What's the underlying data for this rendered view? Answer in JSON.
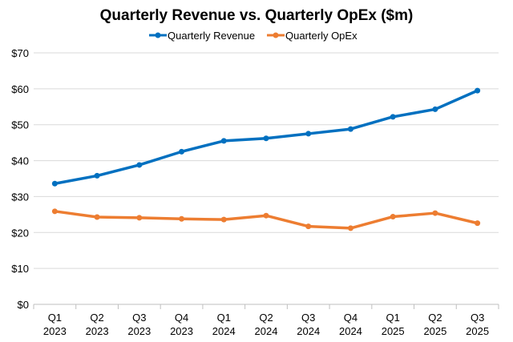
{
  "chart_data": {
    "type": "line",
    "title": "Quarterly Revenue vs. Quarterly OpEx ($m)",
    "xlabel": "",
    "ylabel": "",
    "categories": [
      [
        "Q1",
        "2023"
      ],
      [
        "Q2",
        "2023"
      ],
      [
        "Q3",
        "2023"
      ],
      [
        "Q4",
        "2023"
      ],
      [
        "Q1",
        "2024"
      ],
      [
        "Q2",
        "2024"
      ],
      [
        "Q3",
        "2024"
      ],
      [
        "Q4",
        "2024"
      ],
      [
        "Q1",
        "2025"
      ],
      [
        "Q2",
        "2025"
      ],
      [
        "Q3",
        "2025"
      ]
    ],
    "ylim": [
      0,
      70
    ],
    "yticks": [
      0,
      10,
      20,
      30,
      40,
      50,
      60,
      70
    ],
    "ytick_labels": [
      "$0",
      "$10",
      "$20",
      "$30",
      "$40",
      "$50",
      "$60",
      "$70"
    ],
    "grid": true,
    "legend_position": "top-center",
    "series": [
      {
        "name": "Quarterly Revenue",
        "color": "#0070C0",
        "values": [
          33.6,
          35.8,
          38.8,
          42.5,
          45.5,
          46.2,
          47.5,
          48.8,
          52.2,
          54.3,
          59.5
        ]
      },
      {
        "name": "Quarterly OpEx",
        "color": "#ED7D31",
        "values": [
          25.9,
          24.3,
          24.1,
          23.8,
          23.6,
          24.7,
          21.7,
          21.2,
          24.4,
          25.4,
          22.6
        ]
      }
    ]
  }
}
